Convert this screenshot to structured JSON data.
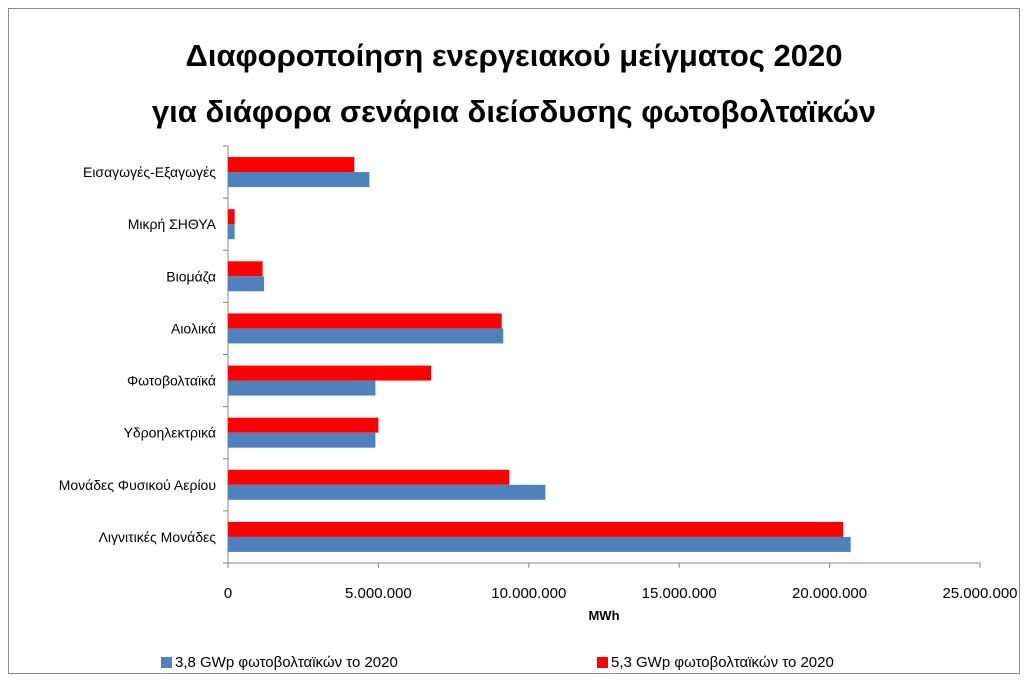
{
  "chart_data": {
    "type": "bar",
    "orientation": "horizontal",
    "title_lines": [
      "Διαφοροποίηση ενεργειακού μείγματος 2020",
      "για διάφορα σενάρια διείσδυσης φωτοβολταϊκών"
    ],
    "xlabel": "MWh",
    "ylabel": "",
    "xlim": [
      0,
      25000000
    ],
    "xticks": [
      0,
      5000000,
      10000000,
      15000000,
      20000000,
      25000000
    ],
    "xtick_labels": [
      "0",
      "5.000.000",
      "10.000.000",
      "15.000.000",
      "20.000.000",
      "25.000.000"
    ],
    "categories": [
      "Λιγνιτικές Μονάδες",
      "Μονάδες Φυσικού Αερίου",
      "Υδροηλεκτρικά",
      "Φωτοβολταϊκά",
      "Αιολικά",
      "Βιομάζα",
      "Μικρή ΣΗΘΥΑ",
      "Εισαγωγές-Εξαγωγές"
    ],
    "series": [
      {
        "name": "3,8 GWp φωτοβολταϊκών το 2020",
        "color": "#4f81bd",
        "values": [
          20700000,
          10550000,
          4900000,
          4900000,
          9150000,
          1200000,
          220000,
          4700000
        ]
      },
      {
        "name": "5,3 GWp φωτοβολταϊκών το 2020",
        "color": "#ff0000",
        "values": [
          20450000,
          9350000,
          5000000,
          6750000,
          9100000,
          1150000,
          220000,
          4200000
        ]
      }
    ],
    "grid": false,
    "legend_position": "bottom"
  }
}
